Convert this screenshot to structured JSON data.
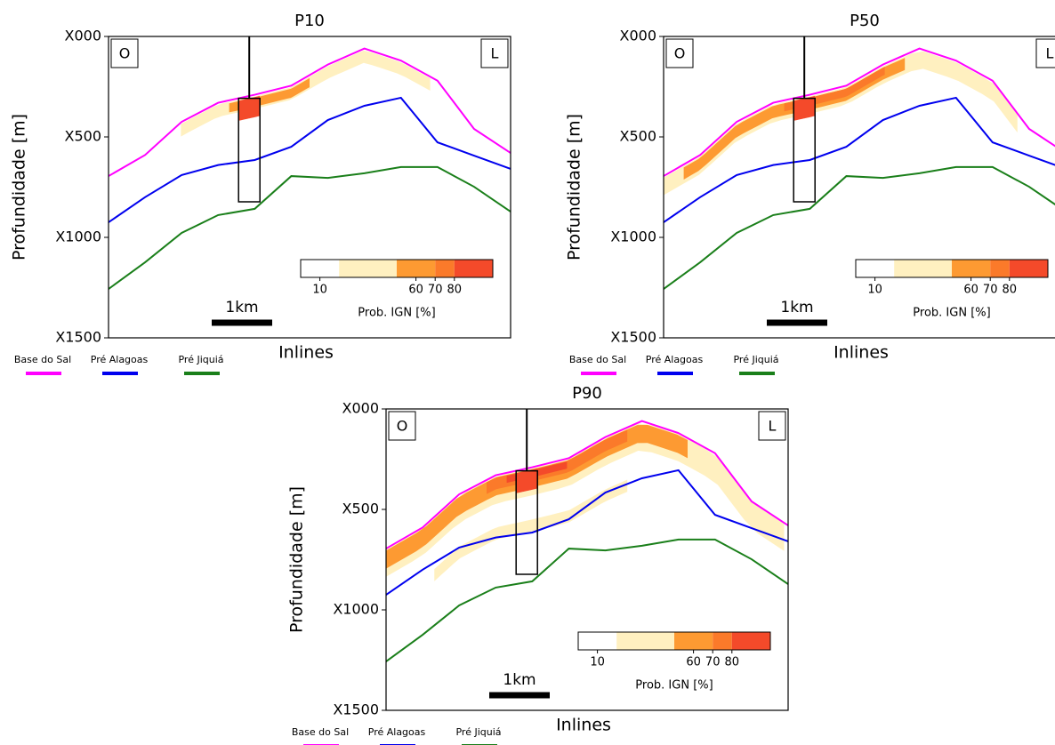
{
  "chart_data": [
    {
      "type": "line",
      "title": "P10",
      "ylabel": "Profundidade [m]",
      "xlabel": "Inlines",
      "ylim": [
        1500,
        0
      ],
      "yticks": [
        {
          "value": 0,
          "label": "X000"
        },
        {
          "value": 500,
          "label": "X500"
        },
        {
          "value": 1000,
          "label": "X1000"
        },
        {
          "value": 1500,
          "label": "X1500"
        }
      ],
      "corner_labels": [
        "O",
        "L"
      ],
      "scale_label": "1km",
      "categories": [
        null,
        null,
        null,
        null,
        null,
        null,
        null,
        null,
        null,
        null,
        null,
        null
      ],
      "series": [
        {
          "name": "Base do Sal",
          "color": "#ff00ff",
          "values": [
            695,
            590,
            425,
            330,
            290,
            245,
            140,
            60,
            120,
            220,
            460,
            580
          ]
        },
        {
          "name": "Pré Alagoas",
          "color": "#0000ee",
          "values": [
            925,
            800,
            690,
            640,
            615,
            549,
            416,
            345,
            305,
            527,
            593,
            659
          ]
        },
        {
          "name": "Pré Jiquiá",
          "color": "#1a7f1a",
          "values": [
            1257,
            1124,
            978,
            889,
            858,
            695,
            704,
            681,
            650,
            650,
            748,
            872
          ]
        }
      ],
      "colorbar": {
        "label": "Prob. IGN [%]",
        "clim": [
          0,
          100
        ],
        "ticks": [
          10,
          60,
          70,
          80
        ],
        "bounds": [
          0,
          20,
          50,
          70,
          80,
          100
        ],
        "colors": [
          "#ffffff",
          "#fff0c0",
          "#fd9a32",
          "#fb7a2a",
          "#f44a2a"
        ]
      }
    },
    {
      "type": "line",
      "title": "P50",
      "ylabel": "Profundidade [m]",
      "xlabel": "Inlines",
      "ylim": [
        1500,
        0
      ],
      "yticks": [
        {
          "value": 0,
          "label": "X000"
        },
        {
          "value": 500,
          "label": "X500"
        },
        {
          "value": 1000,
          "label": "X1000"
        },
        {
          "value": 1500,
          "label": "X1500"
        }
      ],
      "corner_labels": [
        "O",
        "L"
      ],
      "scale_label": "1km",
      "categories": [
        null,
        null,
        null,
        null,
        null,
        null,
        null,
        null,
        null,
        null,
        null,
        null
      ],
      "series": [
        {
          "name": "Base do Sal",
          "color": "#ff00ff",
          "values": [
            695,
            590,
            425,
            330,
            290,
            245,
            140,
            60,
            120,
            220,
            460,
            580
          ]
        },
        {
          "name": "Pré Alagoas",
          "color": "#0000ee",
          "values": [
            925,
            800,
            690,
            640,
            615,
            549,
            416,
            345,
            305,
            527,
            593,
            659
          ]
        },
        {
          "name": "Pré Jiquiá",
          "color": "#1a7f1a",
          "values": [
            1257,
            1124,
            978,
            889,
            858,
            695,
            704,
            681,
            650,
            650,
            748,
            872
          ]
        }
      ],
      "colorbar": {
        "label": "Prob. IGN [%]",
        "clim": [
          0,
          100
        ],
        "ticks": [
          10,
          60,
          70,
          80
        ],
        "bounds": [
          0,
          20,
          50,
          70,
          80,
          100
        ],
        "colors": [
          "#ffffff",
          "#fff0c0",
          "#fd9a32",
          "#fb7a2a",
          "#f44a2a"
        ]
      }
    },
    {
      "type": "line",
      "title": "P90",
      "ylabel": "Profundidade [m]",
      "xlabel": "Inlines",
      "ylim": [
        1500,
        0
      ],
      "yticks": [
        {
          "value": 0,
          "label": "X000"
        },
        {
          "value": 500,
          "label": "X500"
        },
        {
          "value": 1000,
          "label": "X1000"
        },
        {
          "value": 1500,
          "label": "X1500"
        }
      ],
      "corner_labels": [
        "O",
        "L"
      ],
      "scale_label": "1km",
      "categories": [
        null,
        null,
        null,
        null,
        null,
        null,
        null,
        null,
        null,
        null,
        null,
        null
      ],
      "series": [
        {
          "name": "Base do Sal",
          "color": "#ff00ff",
          "values": [
            695,
            590,
            425,
            330,
            290,
            245,
            140,
            60,
            120,
            220,
            460,
            580
          ]
        },
        {
          "name": "Pré Alagoas",
          "color": "#0000ee",
          "values": [
            925,
            800,
            690,
            640,
            615,
            549,
            416,
            345,
            305,
            527,
            593,
            659
          ]
        },
        {
          "name": "Pré Jiquiá",
          "color": "#1a7f1a",
          "values": [
            1257,
            1124,
            978,
            889,
            858,
            695,
            704,
            681,
            650,
            650,
            748,
            872
          ]
        }
      ],
      "colorbar": {
        "label": "Prob. IGN [%]",
        "clim": [
          0,
          100
        ],
        "ticks": [
          10,
          60,
          70,
          80
        ],
        "bounds": [
          0,
          20,
          50,
          70,
          80,
          100
        ],
        "colors": [
          "#ffffff",
          "#fff0c0",
          "#fd9a32",
          "#fb7a2a",
          "#f44a2a"
        ]
      }
    }
  ]
}
